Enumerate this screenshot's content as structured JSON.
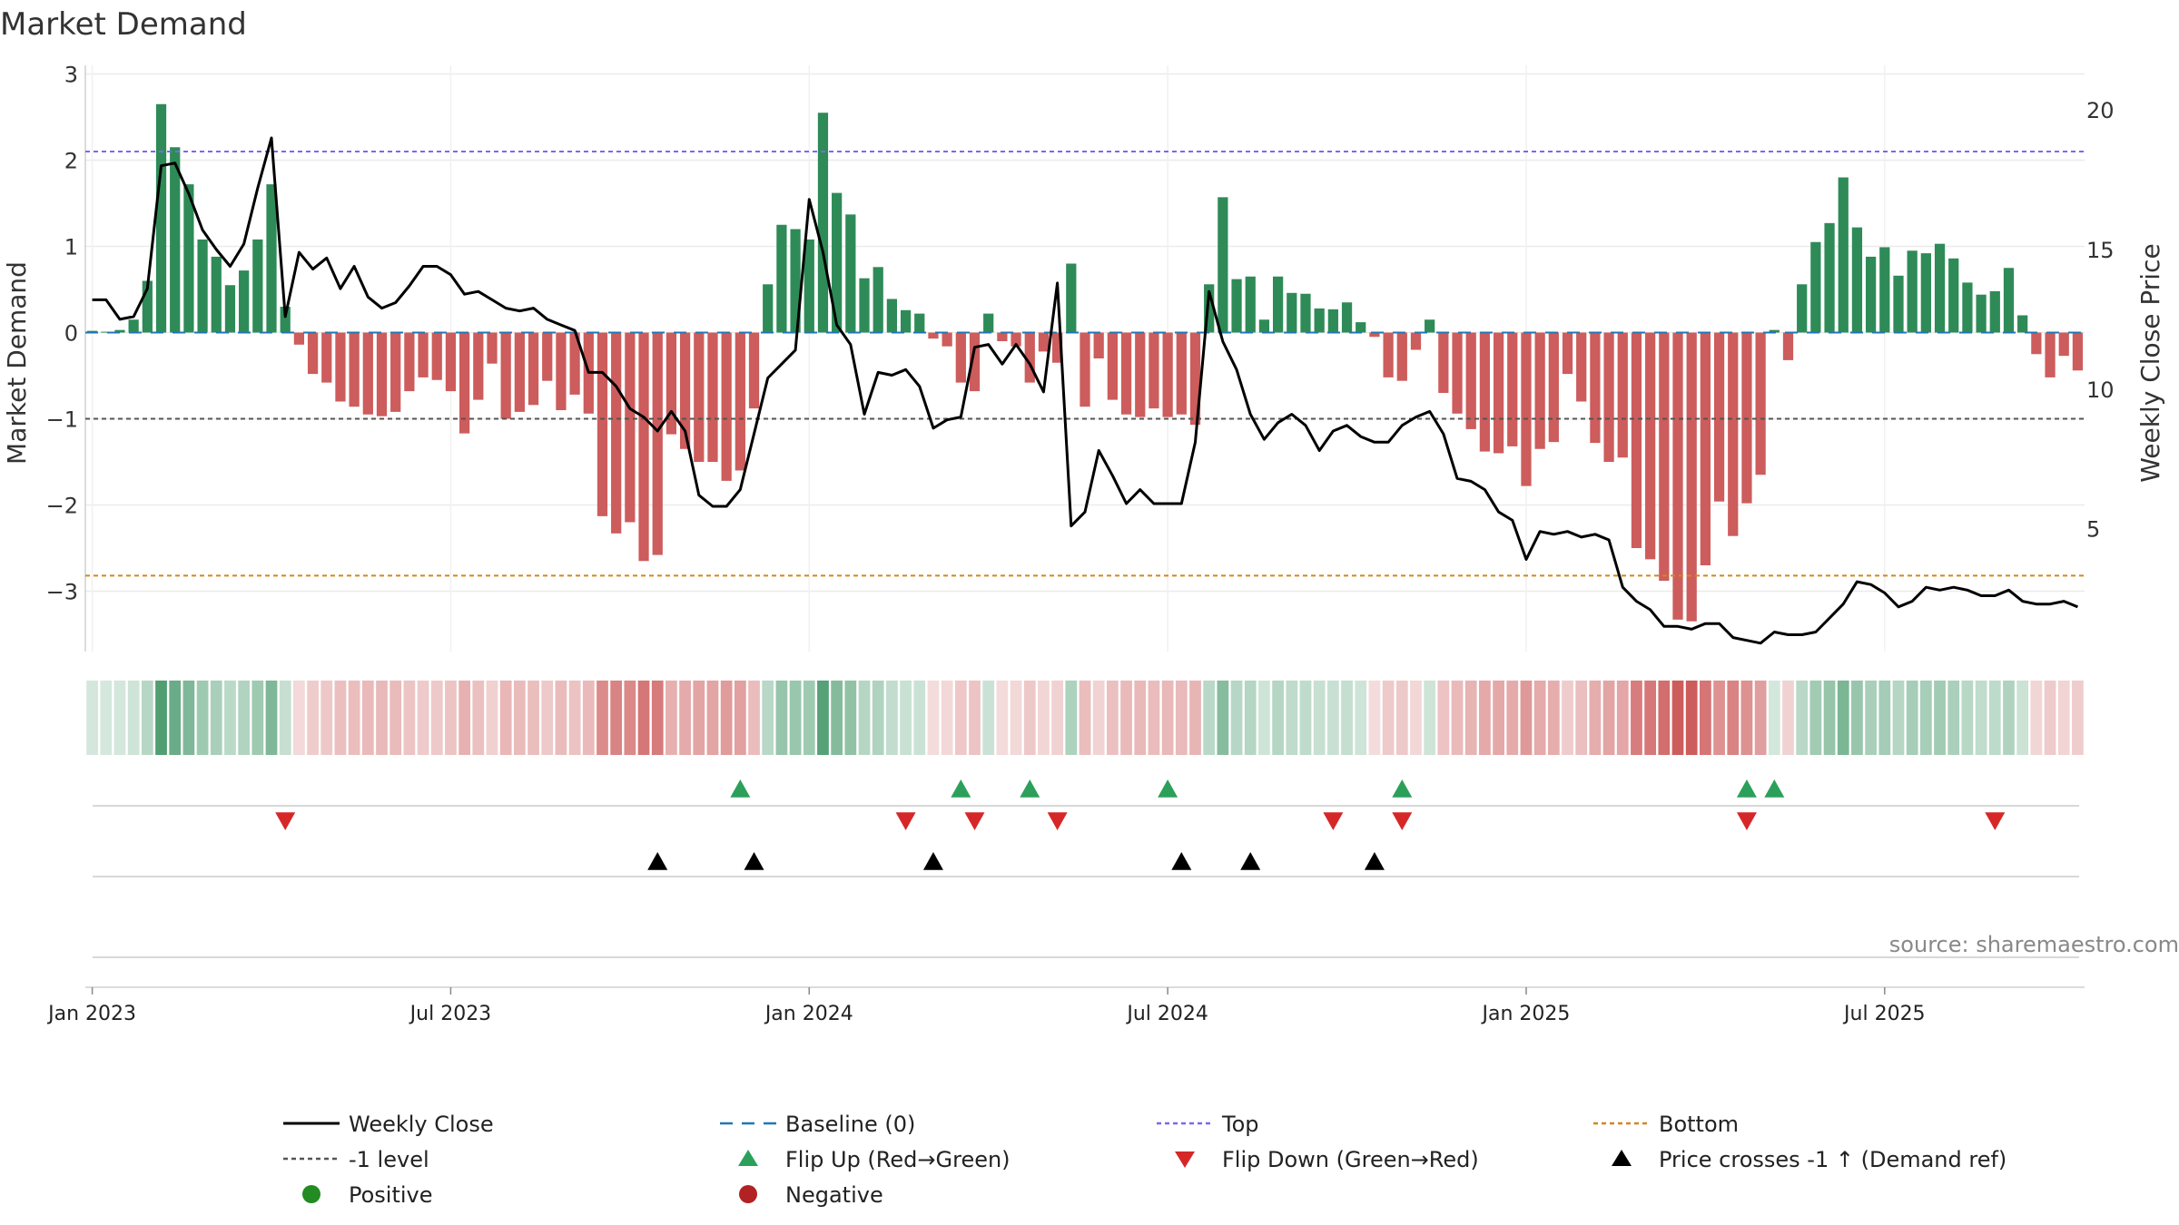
{
  "chart_data": {
    "type": "bar",
    "title": "Market Demand",
    "ylabel": "Market Demand",
    "y2label": "Weekly Close Price",
    "ylim": [
      -3.7,
      3.1
    ],
    "y2lim": [
      0.6,
      21.6
    ],
    "yticks": [
      3,
      2,
      1,
      0,
      -1,
      -2,
      -3
    ],
    "ytick_labels": [
      "3",
      "2",
      "1",
      "0",
      "−1",
      "−2",
      "−3"
    ],
    "y2ticks": [
      20,
      15,
      10,
      5
    ],
    "y2tick_labels": [
      "20",
      "15",
      "10",
      "5"
    ],
    "xticks": [
      {
        "week": 1,
        "label": "Jan 2023"
      },
      {
        "week": 27,
        "label": "Jul 2023"
      },
      {
        "week": 53,
        "label": "Jan 2024"
      },
      {
        "week": 79,
        "label": "Jul 2024"
      },
      {
        "week": 105,
        "label": "Jan 2025"
      },
      {
        "week": 131,
        "label": "Jul 2025"
      }
    ],
    "levels": {
      "top": 2.1,
      "minus_one": -1,
      "bottom": -2.82,
      "baseline": 0
    },
    "demand": [
      0.02,
      0.01,
      0.03,
      0.15,
      0.6,
      2.65,
      2.15,
      1.72,
      1.08,
      0.88,
      0.55,
      0.72,
      1.08,
      1.72,
      0.3,
      -0.14,
      -0.48,
      -0.58,
      -0.8,
      -0.86,
      -0.95,
      -0.97,
      -0.92,
      -0.68,
      -0.52,
      -0.55,
      -0.68,
      -1.17,
      -0.78,
      -0.36,
      -1.0,
      -0.92,
      -0.84,
      -0.56,
      -0.9,
      -0.72,
      -0.94,
      -2.13,
      -2.33,
      -2.2,
      -2.65,
      -2.58,
      -1.18,
      -1.35,
      -1.5,
      -1.5,
      -1.72,
      -1.6,
      -0.88,
      0.56,
      1.25,
      1.2,
      1.08,
      2.55,
      1.62,
      1.37,
      0.63,
      0.76,
      0.39,
      0.26,
      0.22,
      -0.07,
      -0.16,
      -0.58,
      -0.68,
      0.22,
      -0.1,
      -0.16,
      -0.58,
      -0.22,
      -0.35,
      0.8,
      -0.86,
      -0.3,
      -0.78,
      -0.95,
      -0.98,
      -0.88,
      -0.98,
      -0.95,
      -1.07,
      0.56,
      1.57,
      0.62,
      0.65,
      0.15,
      0.65,
      0.46,
      0.45,
      0.28,
      0.27,
      0.35,
      0.12,
      -0.05,
      -0.52,
      -0.56,
      -0.2,
      0.15,
      -0.7,
      -0.94,
      -1.12,
      -1.38,
      -1.4,
      -1.32,
      -1.78,
      -1.35,
      -1.27,
      -0.48,
      -0.8,
      -1.28,
      -1.5,
      -1.45,
      -2.5,
      -2.63,
      -2.88,
      -3.33,
      -3.35,
      -2.7,
      -1.96,
      -2.36,
      -1.98,
      -1.65,
      0.03,
      -0.32,
      0.56,
      1.05,
      1.27,
      1.8,
      1.22,
      0.88,
      0.99,
      0.66,
      0.95,
      0.92,
      1.03,
      0.86,
      0.58,
      0.44,
      0.48,
      0.75,
      0.2,
      -0.25,
      -0.52,
      -0.27,
      -0.44
    ],
    "close": [
      13.2,
      13.2,
      12.5,
      12.6,
      13.6,
      18.0,
      18.1,
      17.0,
      15.7,
      15.0,
      14.4,
      15.2,
      17.2,
      19.0,
      12.6,
      14.9,
      14.3,
      14.7,
      13.6,
      14.4,
      13.3,
      12.9,
      13.1,
      13.7,
      14.4,
      14.4,
      14.1,
      13.4,
      13.5,
      13.2,
      12.9,
      12.8,
      12.9,
      12.5,
      12.3,
      12.1,
      10.6,
      10.6,
      10.1,
      9.3,
      9.0,
      8.5,
      9.2,
      8.5,
      6.2,
      5.8,
      5.8,
      6.4,
      8.4,
      10.4,
      10.9,
      11.4,
      16.8,
      14.9,
      12.3,
      11.6,
      9.1,
      10.6,
      10.5,
      10.7,
      10.1,
      8.6,
      8.9,
      9.0,
      11.5,
      11.6,
      10.9,
      11.6,
      10.9,
      9.9,
      13.8,
      5.1,
      5.6,
      7.8,
      6.9,
      5.9,
      6.4,
      5.9,
      5.9,
      5.9,
      8.1,
      13.5,
      11.7,
      10.7,
      9.1,
      8.2,
      8.8,
      9.1,
      8.7,
      7.8,
      8.5,
      8.7,
      8.3,
      8.1,
      8.1,
      8.7,
      9.0,
      9.2,
      8.4,
      6.8,
      6.7,
      6.4,
      5.6,
      5.3,
      3.9,
      4.9,
      4.8,
      4.9,
      4.7,
      4.8,
      4.6,
      2.9,
      2.4,
      2.1,
      1.5,
      1.5,
      1.4,
      1.6,
      1.6,
      1.1,
      1.0,
      0.9,
      1.3,
      1.2,
      1.2,
      1.3,
      1.8,
      2.3,
      3.1,
      3.0,
      2.7,
      2.2,
      2.4,
      2.9,
      2.8,
      2.9,
      2.8,
      2.6,
      2.6,
      2.8,
      2.4,
      2.3,
      2.3,
      2.4,
      2.2
    ],
    "flip_up_weeks": [
      48,
      64,
      69,
      79,
      96,
      121,
      123
    ],
    "flip_down_weeks": [
      15,
      60,
      65,
      71,
      91,
      96,
      121,
      139
    ],
    "price_cross_weeks": [
      42,
      49,
      62,
      80,
      85,
      94
    ],
    "legend": [
      {
        "label": "Weekly Close",
        "symbol": "line",
        "color": "#000000"
      },
      {
        "label": "Baseline (0)",
        "symbol": "dash",
        "color": "#1f77b4"
      },
      {
        "label": "Top",
        "symbol": "dot",
        "color": "#7b68ee"
      },
      {
        "label": "Bottom",
        "symbol": "dot",
        "color": "#d4861a"
      },
      {
        "label": "-1 level",
        "symbol": "dot",
        "color": "#555555"
      },
      {
        "label": "Flip Up (Red→Green)",
        "symbol": "tri-up",
        "color": "#2ca05a"
      },
      {
        "label": "Flip Down (Green→Red)",
        "symbol": "tri-down",
        "color": "#d62728"
      },
      {
        "label": "Price crosses -1 ↑ (Demand ref)",
        "symbol": "tri-up",
        "color": "#000000"
      },
      {
        "label": "Positive",
        "symbol": "circle",
        "color": "#228b22"
      },
      {
        "label": "Negative",
        "symbol": "circle",
        "color": "#b22222"
      }
    ],
    "source": "source: sharemaestro.com",
    "colors": {
      "positive": "#2e8b57",
      "negative": "#cd5c5c",
      "close": "#000000",
      "baseline": "#1f77b4",
      "top": "#7b68ee",
      "bottom": "#d4861a",
      "minus_one": "#555555",
      "flip_up": "#2ca05a",
      "flip_down": "#d62728",
      "cross": "#000000"
    }
  }
}
